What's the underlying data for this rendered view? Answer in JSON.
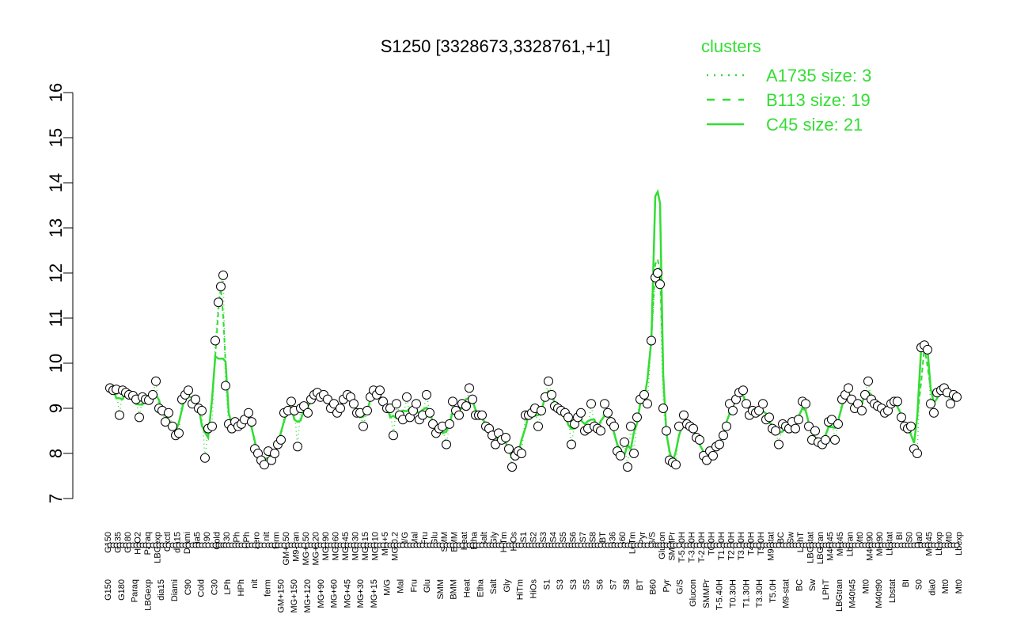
{
  "chart_data": {
    "type": "line",
    "title": "S1250 [3328673,3328761,+1]",
    "ylim": [
      7,
      16
    ],
    "yticks": [
      7,
      8,
      9,
      10,
      11,
      12,
      13,
      14,
      15,
      16
    ],
    "x_top_labels": [
      "G150",
      "G135",
      "G180",
      "H2O2",
      "Paraq",
      "LBGexp",
      "Oxctl",
      "dia15",
      "Diami",
      "dia5",
      "C90",
      "Cold",
      "C30",
      "LPh",
      "HPh",
      "aero",
      "nit",
      "ferm",
      "GM+150",
      "M9-tran",
      "MG+150",
      "MG+120",
      "MG+90",
      "MG+60",
      "MG+45",
      "MG+30",
      "MG+15",
      "MG+10",
      "MG+5",
      "MG-0.2",
      "M/G",
      "Mal",
      "Fru",
      "Glu",
      "SMM",
      "BMM",
      "Heat",
      "Etha",
      "Salt",
      "Gly",
      "HiTm",
      "HiOs",
      "S1",
      "S2",
      "S3",
      "S4",
      "S5",
      "S6",
      "S7",
      "S8",
      "BT",
      "B36",
      "B60",
      "LoTm",
      "Pyr",
      "G/S",
      "Glucon",
      "SMMPr",
      "T-5.40H",
      "T-3.40H",
      "T-2.40H",
      "T0.0H",
      "T1.30H",
      "T2.30H",
      "T3.30H",
      "T4.0H",
      "T5.0H",
      "M9-stat",
      "BC",
      "Sw",
      "LPhT",
      "LBGstat",
      "LBGtran",
      "M40t45",
      "M0t45",
      "Lbtran",
      "Mt0",
      "M40t90",
      "M0t90",
      "Lbstat",
      "BI",
      "S0",
      "dia0",
      "M0t45",
      "Lbexp",
      "Mt0",
      "Lbexp"
    ],
    "x_bottom_labels": [
      "G150",
      "G180",
      "Paraq",
      "LBGexp",
      "dia15",
      "Diami",
      "C90",
      "Cold",
      "C30",
      "LPh",
      "HPh",
      "nit",
      "ferm",
      "GM+150",
      "MG+150",
      "MG+120",
      "MG+90",
      "MG+60",
      "MG+45",
      "MG+30",
      "MG+15",
      "M/G",
      "Mal",
      "Fru",
      "Glu",
      "SMM",
      "BMM",
      "Heat",
      "Etha",
      "Salt",
      "Gly",
      "HiTm",
      "HiOs",
      "S1",
      "S3",
      "S3",
      "S5",
      "S6",
      "S7",
      "S8",
      "BT",
      "B60",
      "Pyr",
      "G/S",
      "Glucon",
      "SMMPr",
      "T-5.40H",
      "T0.30H",
      "T1.30H",
      "T3.30H",
      "T5.0H",
      "M9-stat",
      "BC",
      "Sw",
      "LPhT",
      "LBGtran",
      "M40t45",
      "Mt0",
      "M40t90",
      "Lbstat",
      "BI",
      "S0",
      "dia0",
      "Mt0",
      "Mt0"
    ],
    "points": [
      {
        "x": 139,
        "y": 9.45
      },
      {
        "x": 143,
        "y": 9.4
      },
      {
        "x": 147,
        "y": 9.42
      },
      {
        "x": 151,
        "y": 8.85
      },
      {
        "x": 155,
        "y": 9.4
      },
      {
        "x": 159,
        "y": 9.35
      },
      {
        "x": 163,
        "y": 9.3
      },
      {
        "x": 168,
        "y": 9.28
      },
      {
        "x": 172,
        "y": 9.2
      },
      {
        "x": 176,
        "y": 8.8
      },
      {
        "x": 180,
        "y": 9.25
      },
      {
        "x": 184,
        "y": 9.2
      },
      {
        "x": 188,
        "y": 9.18
      },
      {
        "x": 193,
        "y": 9.3
      },
      {
        "x": 197,
        "y": 9.6
      },
      {
        "x": 201,
        "y": 9.0
      },
      {
        "x": 205,
        "y": 8.95
      },
      {
        "x": 209,
        "y": 8.7
      },
      {
        "x": 213,
        "y": 8.9
      },
      {
        "x": 218,
        "y": 8.6
      },
      {
        "x": 222,
        "y": 8.4
      },
      {
        "x": 226,
        "y": 8.45
      },
      {
        "x": 230,
        "y": 9.2
      },
      {
        "x": 234,
        "y": 9.3
      },
      {
        "x": 238,
        "y": 9.4
      },
      {
        "x": 243,
        "y": 9.1
      },
      {
        "x": 247,
        "y": 9.2
      },
      {
        "x": 251,
        "y": 9.0
      },
      {
        "x": 255,
        "y": 8.95
      },
      {
        "x": 259,
        "y": 7.9
      },
      {
        "x": 263,
        "y": 8.55
      },
      {
        "x": 268,
        "y": 8.6
      },
      {
        "x": 272,
        "y": 10.5
      },
      {
        "x": 276,
        "y": 11.35
      },
      {
        "x": 279,
        "y": 11.7
      },
      {
        "x": 282,
        "y": 11.95
      },
      {
        "x": 285,
        "y": 9.5
      },
      {
        "x": 289,
        "y": 8.65
      },
      {
        "x": 293,
        "y": 8.55
      },
      {
        "x": 297,
        "y": 8.7
      },
      {
        "x": 301,
        "y": 8.6
      },
      {
        "x": 305,
        "y": 8.65
      },
      {
        "x": 309,
        "y": 8.75
      },
      {
        "x": 314,
        "y": 8.9
      },
      {
        "x": 318,
        "y": 8.7
      },
      {
        "x": 322,
        "y": 8.1
      },
      {
        "x": 326,
        "y": 8.0
      },
      {
        "x": 330,
        "y": 7.85
      },
      {
        "x": 334,
        "y": 7.75
      },
      {
        "x": 339,
        "y": 8.05
      },
      {
        "x": 343,
        "y": 7.85
      },
      {
        "x": 347,
        "y": 8.0
      },
      {
        "x": 351,
        "y": 8.2
      },
      {
        "x": 355,
        "y": 8.3
      },
      {
        "x": 359,
        "y": 8.9
      },
      {
        "x": 364,
        "y": 8.95
      },
      {
        "x": 368,
        "y": 9.15
      },
      {
        "x": 372,
        "y": 8.95
      },
      {
        "x": 376,
        "y": 8.15
      },
      {
        "x": 380,
        "y": 9.0
      },
      {
        "x": 384,
        "y": 9.05
      },
      {
        "x": 389,
        "y": 8.9
      },
      {
        "x": 393,
        "y": 9.2
      },
      {
        "x": 397,
        "y": 9.3
      },
      {
        "x": 401,
        "y": 9.35
      },
      {
        "x": 405,
        "y": 9.25
      },
      {
        "x": 409,
        "y": 9.3
      },
      {
        "x": 414,
        "y": 9.2
      },
      {
        "x": 418,
        "y": 9.0
      },
      {
        "x": 422,
        "y": 9.1
      },
      {
        "x": 426,
        "y": 8.9
      },
      {
        "x": 430,
        "y": 9.0
      },
      {
        "x": 434,
        "y": 9.2
      },
      {
        "x": 439,
        "y": 9.3
      },
      {
        "x": 443,
        "y": 9.25
      },
      {
        "x": 447,
        "y": 9.1
      },
      {
        "x": 451,
        "y": 8.9
      },
      {
        "x": 455,
        "y": 8.9
      },
      {
        "x": 459,
        "y": 8.6
      },
      {
        "x": 464,
        "y": 8.95
      },
      {
        "x": 468,
        "y": 9.25
      },
      {
        "x": 472,
        "y": 9.4
      },
      {
        "x": 476,
        "y": 9.3
      },
      {
        "x": 480,
        "y": 9.4
      },
      {
        "x": 484,
        "y": 9.15
      },
      {
        "x": 489,
        "y": 9.0
      },
      {
        "x": 493,
        "y": 9.0
      },
      {
        "x": 497,
        "y": 8.4
      },
      {
        "x": 501,
        "y": 9.1
      },
      {
        "x": 505,
        "y": 8.85
      },
      {
        "x": 509,
        "y": 8.75
      },
      {
        "x": 514,
        "y": 9.25
      },
      {
        "x": 518,
        "y": 8.8
      },
      {
        "x": 522,
        "y": 8.95
      },
      {
        "x": 526,
        "y": 9.1
      },
      {
        "x": 530,
        "y": 8.75
      },
      {
        "x": 534,
        "y": 8.85
      },
      {
        "x": 539,
        "y": 9.3
      },
      {
        "x": 543,
        "y": 8.9
      },
      {
        "x": 547,
        "y": 8.65
      },
      {
        "x": 551,
        "y": 8.45
      },
      {
        "x": 555,
        "y": 8.55
      },
      {
        "x": 559,
        "y": 8.6
      },
      {
        "x": 564,
        "y": 8.2
      },
      {
        "x": 568,
        "y": 8.65
      },
      {
        "x": 572,
        "y": 9.15
      },
      {
        "x": 576,
        "y": 8.95
      },
      {
        "x": 580,
        "y": 8.85
      },
      {
        "x": 584,
        "y": 9.1
      },
      {
        "x": 589,
        "y": 9.05
      },
      {
        "x": 593,
        "y": 9.45
      },
      {
        "x": 597,
        "y": 9.2
      },
      {
        "x": 601,
        "y": 8.85
      },
      {
        "x": 605,
        "y": 8.85
      },
      {
        "x": 609,
        "y": 8.85
      },
      {
        "x": 614,
        "y": 8.6
      },
      {
        "x": 618,
        "y": 8.55
      },
      {
        "x": 622,
        "y": 8.4
      },
      {
        "x": 626,
        "y": 8.2
      },
      {
        "x": 630,
        "y": 8.45
      },
      {
        "x": 634,
        "y": 8.3
      },
      {
        "x": 639,
        "y": 8.35
      },
      {
        "x": 643,
        "y": 8.1
      },
      {
        "x": 647,
        "y": 7.7
      },
      {
        "x": 651,
        "y": 7.95
      },
      {
        "x": 655,
        "y": 8.05
      },
      {
        "x": 659,
        "y": 8.0
      },
      {
        "x": 664,
        "y": 8.85
      },
      {
        "x": 668,
        "y": 8.85
      },
      {
        "x": 672,
        "y": 8.9
      },
      {
        "x": 676,
        "y": 9.0
      },
      {
        "x": 680,
        "y": 8.6
      },
      {
        "x": 684,
        "y": 8.95
      },
      {
        "x": 689,
        "y": 9.25
      },
      {
        "x": 693,
        "y": 9.6
      },
      {
        "x": 697,
        "y": 9.3
      },
      {
        "x": 701,
        "y": 9.05
      },
      {
        "x": 705,
        "y": 9.0
      },
      {
        "x": 709,
        "y": 8.95
      },
      {
        "x": 714,
        "y": 8.9
      },
      {
        "x": 718,
        "y": 8.8
      },
      {
        "x": 722,
        "y": 8.2
      },
      {
        "x": 726,
        "y": 8.65
      },
      {
        "x": 730,
        "y": 8.8
      },
      {
        "x": 734,
        "y": 8.9
      },
      {
        "x": 739,
        "y": 8.5
      },
      {
        "x": 743,
        "y": 8.55
      },
      {
        "x": 747,
        "y": 9.1
      },
      {
        "x": 751,
        "y": 8.6
      },
      {
        "x": 755,
        "y": 8.55
      },
      {
        "x": 759,
        "y": 8.5
      },
      {
        "x": 764,
        "y": 9.1
      },
      {
        "x": 768,
        "y": 8.9
      },
      {
        "x": 772,
        "y": 8.7
      },
      {
        "x": 776,
        "y": 8.6
      },
      {
        "x": 780,
        "y": 8.05
      },
      {
        "x": 784,
        "y": 7.95
      },
      {
        "x": 789,
        "y": 8.25
      },
      {
        "x": 793,
        "y": 7.7
      },
      {
        "x": 797,
        "y": 8.6
      },
      {
        "x": 801,
        "y": 8.0
      },
      {
        "x": 805,
        "y": 8.8
      },
      {
        "x": 809,
        "y": 9.2
      },
      {
        "x": 814,
        "y": 9.3
      },
      {
        "x": 818,
        "y": 9.1
      },
      {
        "x": 823,
        "y": 10.5
      },
      {
        "x": 828,
        "y": 11.9
      },
      {
        "x": 831,
        "y": 12.0
      },
      {
        "x": 834,
        "y": 11.75
      },
      {
        "x": 838,
        "y": 9.0
      },
      {
        "x": 842,
        "y": 8.5
      },
      {
        "x": 846,
        "y": 7.85
      },
      {
        "x": 850,
        "y": 7.8
      },
      {
        "x": 854,
        "y": 7.75
      },
      {
        "x": 858,
        "y": 8.6
      },
      {
        "x": 864,
        "y": 8.85
      },
      {
        "x": 868,
        "y": 8.65
      },
      {
        "x": 872,
        "y": 8.6
      },
      {
        "x": 876,
        "y": 8.55
      },
      {
        "x": 880,
        "y": 8.35
      },
      {
        "x": 884,
        "y": 8.3
      },
      {
        "x": 889,
        "y": 7.95
      },
      {
        "x": 893,
        "y": 7.85
      },
      {
        "x": 897,
        "y": 8.05
      },
      {
        "x": 901,
        "y": 7.95
      },
      {
        "x": 905,
        "y": 8.15
      },
      {
        "x": 909,
        "y": 8.2
      },
      {
        "x": 914,
        "y": 8.4
      },
      {
        "x": 918,
        "y": 8.6
      },
      {
        "x": 922,
        "y": 9.1
      },
      {
        "x": 926,
        "y": 8.95
      },
      {
        "x": 930,
        "y": 9.2
      },
      {
        "x": 934,
        "y": 9.35
      },
      {
        "x": 939,
        "y": 9.4
      },
      {
        "x": 943,
        "y": 9.1
      },
      {
        "x": 947,
        "y": 8.85
      },
      {
        "x": 951,
        "y": 8.95
      },
      {
        "x": 955,
        "y": 8.9
      },
      {
        "x": 959,
        "y": 8.95
      },
      {
        "x": 964,
        "y": 9.1
      },
      {
        "x": 968,
        "y": 8.75
      },
      {
        "x": 972,
        "y": 8.8
      },
      {
        "x": 976,
        "y": 8.55
      },
      {
        "x": 980,
        "y": 8.5
      },
      {
        "x": 984,
        "y": 8.2
      },
      {
        "x": 989,
        "y": 8.65
      },
      {
        "x": 993,
        "y": 8.6
      },
      {
        "x": 997,
        "y": 8.55
      },
      {
        "x": 1001,
        "y": 8.7
      },
      {
        "x": 1005,
        "y": 8.55
      },
      {
        "x": 1009,
        "y": 8.75
      },
      {
        "x": 1014,
        "y": 9.15
      },
      {
        "x": 1018,
        "y": 9.1
      },
      {
        "x": 1022,
        "y": 8.6
      },
      {
        "x": 1026,
        "y": 8.3
      },
      {
        "x": 1030,
        "y": 8.5
      },
      {
        "x": 1034,
        "y": 8.25
      },
      {
        "x": 1039,
        "y": 8.2
      },
      {
        "x": 1043,
        "y": 8.3
      },
      {
        "x": 1047,
        "y": 8.7
      },
      {
        "x": 1051,
        "y": 8.75
      },
      {
        "x": 1055,
        "y": 8.3
      },
      {
        "x": 1059,
        "y": 8.65
      },
      {
        "x": 1064,
        "y": 9.2
      },
      {
        "x": 1068,
        "y": 9.3
      },
      {
        "x": 1072,
        "y": 9.45
      },
      {
        "x": 1076,
        "y": 9.2
      },
      {
        "x": 1080,
        "y": 9.0
      },
      {
        "x": 1084,
        "y": 9.1
      },
      {
        "x": 1089,
        "y": 8.95
      },
      {
        "x": 1093,
        "y": 9.3
      },
      {
        "x": 1097,
        "y": 9.6
      },
      {
        "x": 1101,
        "y": 9.2
      },
      {
        "x": 1105,
        "y": 9.1
      },
      {
        "x": 1109,
        "y": 9.05
      },
      {
        "x": 1114,
        "y": 9.0
      },
      {
        "x": 1118,
        "y": 8.9
      },
      {
        "x": 1122,
        "y": 8.95
      },
      {
        "x": 1126,
        "y": 9.1
      },
      {
        "x": 1130,
        "y": 9.15
      },
      {
        "x": 1134,
        "y": 9.15
      },
      {
        "x": 1139,
        "y": 8.8
      },
      {
        "x": 1143,
        "y": 8.6
      },
      {
        "x": 1147,
        "y": 8.55
      },
      {
        "x": 1151,
        "y": 8.6
      },
      {
        "x": 1155,
        "y": 8.1
      },
      {
        "x": 1159,
        "y": 8.0
      },
      {
        "x": 1164,
        "y": 10.35
      },
      {
        "x": 1168,
        "y": 10.4
      },
      {
        "x": 1172,
        "y": 10.3
      },
      {
        "x": 1176,
        "y": 9.1
      },
      {
        "x": 1180,
        "y": 8.9
      },
      {
        "x": 1184,
        "y": 9.35
      },
      {
        "x": 1189,
        "y": 9.4
      },
      {
        "x": 1193,
        "y": 9.45
      },
      {
        "x": 1197,
        "y": 9.35
      },
      {
        "x": 1201,
        "y": 9.1
      },
      {
        "x": 1205,
        "y": 9.3
      },
      {
        "x": 1209,
        "y": 9.25
      }
    ],
    "legend": {
      "title": "clusters",
      "entries": [
        {
          "name": "A1735 size: 3",
          "style": "dotted"
        },
        {
          "name": "B113 size: 19",
          "style": "dashed"
        },
        {
          "name": "C45 size: 21",
          "style": "solid"
        }
      ],
      "color": "#33dd33",
      "placement": "top-right"
    },
    "grid": false,
    "colors": {
      "series": "#33dd33",
      "points": "#000000",
      "axis": "#000000"
    }
  }
}
